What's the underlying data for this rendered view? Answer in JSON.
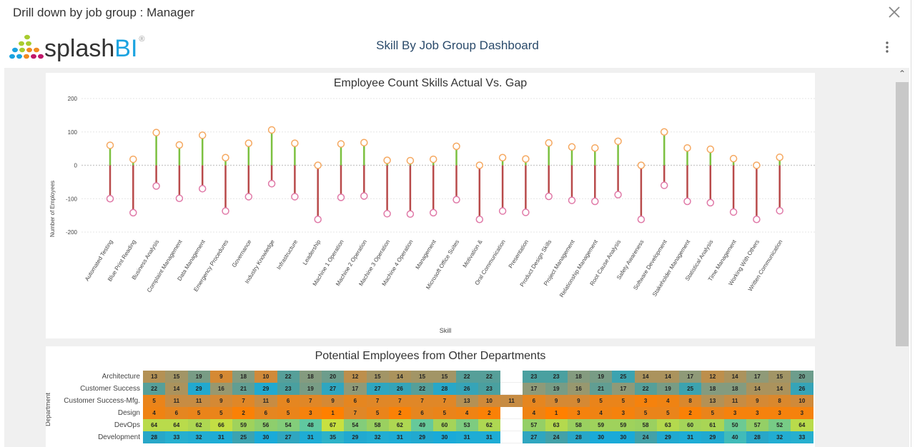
{
  "dialog": {
    "title": "Drill down by job group : Manager",
    "close_icon": "close-icon"
  },
  "header": {
    "logo_text_1": "splash",
    "logo_text_2": "BI",
    "logo_mark": "®",
    "dashboard_title": "Skill By Job Group Dashboard",
    "menu_icon": "kebab-menu-icon"
  },
  "colors": {
    "actual_line": "#7cc040",
    "gap_line": "#b84a4a",
    "actual_marker": "#f5a860",
    "gap_marker": "#e07aa8",
    "title": "#2a4a6a",
    "bi_blue": "#1aa3e0"
  },
  "chart_data": [
    {
      "type": "lollipop",
      "title": "Employee Count Skills Actual Vs. Gap",
      "xlabel": "Skill",
      "ylabel": "Number of Employees",
      "ylim": [
        -200,
        200
      ],
      "yticks": [
        200,
        100,
        0,
        -100,
        -200
      ],
      "grid": true,
      "categories": [
        "Automated Testing",
        "Blue Print Reading",
        "Business Analysis",
        "Complaint Management",
        "Data Management",
        "Emergency Procedures",
        "Governance",
        "Industry Knowledge",
        "Infrastructure",
        "Leadership",
        "Machine 1 Operation",
        "Machine 2 Operation",
        "Machine 3 Operation",
        "Machine 4 Operation",
        "Management",
        "Microsoft Office Suites",
        "Motivation &",
        "Oral Communication",
        "Presentation",
        "Product Design Skills",
        "Project Management",
        "Relationship Management",
        "Root Cause Analysis",
        "Safety Awareness",
        "Software Development",
        "Stakeholder Management",
        "Statistical Analysis",
        "Time Management",
        "Working With Others",
        "Written Communication"
      ],
      "series": [
        {
          "values": [
            60,
            18,
            98,
            61,
            90,
            23,
            66,
            106,
            66,
            0,
            64,
            68,
            15,
            14,
            18,
            57,
            0,
            23,
            19,
            67,
            55,
            52,
            72,
            0,
            100,
            52,
            48,
            20,
            0,
            24
          ]
        },
        {
          "values": [
            -100,
            -142,
            -62,
            -99,
            -70,
            -137,
            -94,
            -55,
            -94,
            -162,
            -96,
            -92,
            -145,
            -146,
            -142,
            -103,
            -162,
            -137,
            -141,
            -93,
            -105,
            -108,
            -88,
            -162,
            -60,
            -108,
            -112,
            -140,
            -162,
            -136
          ]
        }
      ]
    },
    {
      "type": "heatmap",
      "title": "Potential Employees from Other Departments",
      "ylabel": "Department",
      "rows": [
        "Architecture",
        "Customer Success",
        "Customer Success-Mfg.",
        "Design",
        "DevOps",
        "Development"
      ],
      "values": [
        [
          13,
          15,
          19,
          9,
          18,
          10,
          22,
          18,
          20,
          12,
          15,
          14,
          15,
          15,
          22,
          22,
          null,
          23,
          23,
          18,
          19,
          25,
          14,
          14,
          17,
          12,
          14,
          17,
          15,
          20
        ],
        [
          22,
          14,
          29,
          16,
          21,
          29,
          23,
          19,
          27,
          17,
          27,
          26,
          22,
          28,
          26,
          23,
          null,
          17,
          19,
          16,
          21,
          17,
          22,
          19,
          25,
          18,
          18,
          14,
          14,
          26
        ],
        [
          5,
          11,
          11,
          9,
          7,
          11,
          6,
          7,
          9,
          6,
          7,
          7,
          7,
          7,
          13,
          10,
          11,
          6,
          9,
          9,
          5,
          5,
          3,
          4,
          8,
          13,
          11,
          9,
          8,
          10
        ],
        [
          4,
          6,
          5,
          5,
          2,
          6,
          5,
          3,
          1,
          7,
          5,
          2,
          6,
          5,
          4,
          2,
          null,
          4,
          1,
          3,
          4,
          3,
          5,
          5,
          2,
          5,
          3,
          3,
          3,
          3
        ],
        [
          64,
          64,
          62,
          66,
          59,
          56,
          54,
          48,
          67,
          54,
          58,
          62,
          49,
          60,
          53,
          62,
          null,
          57,
          63,
          58,
          59,
          59,
          58,
          63,
          60,
          61,
          50,
          57,
          52,
          64
        ],
        [
          28,
          33,
          32,
          31,
          25,
          30,
          27,
          31,
          35,
          29,
          32,
          31,
          29,
          30,
          31,
          31,
          null,
          27,
          24,
          28,
          30,
          30,
          24,
          29,
          31,
          29,
          40,
          28,
          32,
          33
        ]
      ],
      "color_scale": [
        "#ff8000",
        "#d08a3a",
        "#8f9a78",
        "#4aa0a0",
        "#1aaad8",
        "#60c8a0",
        "#9ad060",
        "#c8e040"
      ]
    }
  ]
}
